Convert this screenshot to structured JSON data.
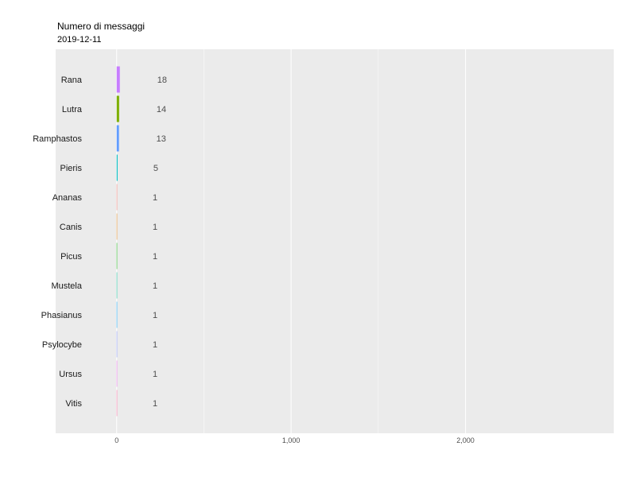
{
  "chart_data": {
    "type": "bar",
    "orientation": "horizontal",
    "title": "Numero di messaggi",
    "subtitle": "2019-12-11",
    "categories": [
      "Rana",
      "Lutra",
      "Ramphastos",
      "Pieris",
      "Ananas",
      "Canis",
      "Picus",
      "Mustela",
      "Phasianus",
      "Psylocybe",
      "Ursus",
      "Vitis"
    ],
    "values": [
      18,
      14,
      13,
      5,
      1,
      1,
      1,
      1,
      1,
      1,
      1,
      1
    ],
    "value_labels": [
      "18",
      "14",
      "13",
      "5",
      "1",
      "1",
      "1",
      "1",
      "1",
      "1",
      "1",
      "1"
    ],
    "colors": [
      "#c77cff",
      "#7cae00",
      "#619cff",
      "#00bfc4",
      "#f8766d",
      "#e68613",
      "#0cb702",
      "#00c19a",
      "#00a9ff",
      "#8494ff",
      "#ed68ed",
      "#ff68a1"
    ],
    "x_ticks": [
      0,
      1000,
      2000
    ],
    "x_tick_labels": [
      "0",
      "1,000",
      "2,000"
    ],
    "xlim": [
      -350,
      2850
    ],
    "xlabel": "",
    "ylabel": "",
    "grid": true,
    "panel_background": "#ebebeb",
    "grid_color": "#ffffff",
    "legend": "none"
  }
}
